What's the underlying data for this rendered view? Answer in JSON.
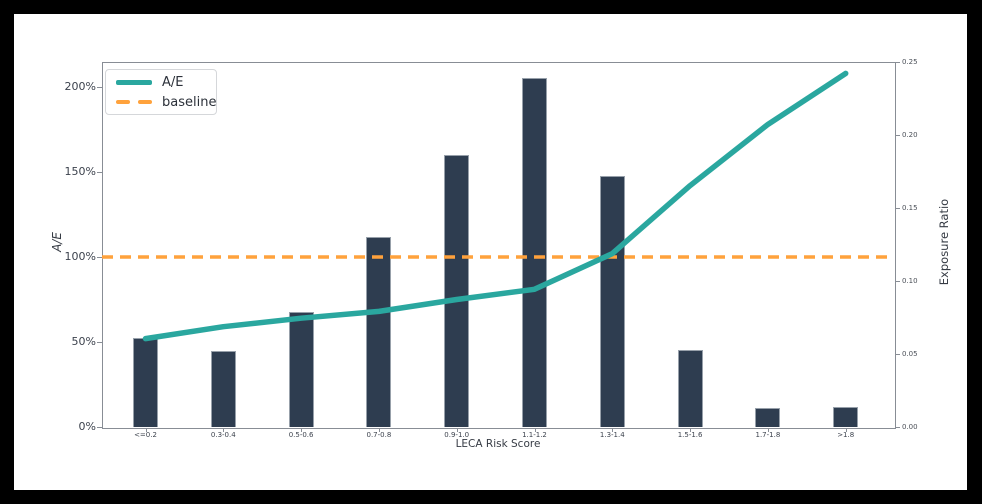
{
  "figure": {
    "background": "#ffffff",
    "frame_color": "#000000"
  },
  "colors": {
    "bar": "#2e3d50",
    "bar_edge": "#97a0aa",
    "ae_line": "#2aa79f",
    "baseline": "#ffa23c",
    "grid": "#e1e3e5",
    "spine": "#888d95",
    "tick_text": "#3c424d"
  },
  "chart_data": {
    "type": "combo",
    "title": "",
    "xlabel": "LECA Risk Score",
    "categories": [
      "<=0.2",
      "0.3-0.4",
      "0.5-0.6",
      "0.7-0.8",
      "0.9-1.0",
      "1.1-1.2",
      "1.3-1.4",
      "1.5-1.6",
      "1.7-1.8",
      ">1.8"
    ],
    "series": [
      {
        "name": "Exposure Ratio",
        "type": "bar",
        "axis": "right",
        "color": "#2e3d50",
        "values": [
          0.061,
          0.052,
          0.079,
          0.13,
          0.186,
          0.239,
          0.172,
          0.053,
          0.013,
          0.014
        ]
      },
      {
        "name": "A/E",
        "type": "line",
        "axis": "left",
        "color": "#2aa79f",
        "values_percent": [
          52,
          59,
          64,
          68,
          75,
          81,
          102,
          142,
          178,
          208
        ]
      },
      {
        "name": "baseline",
        "type": "hline-dashed",
        "axis": "left",
        "color": "#ffa23c",
        "value_percent": 100
      }
    ],
    "left_axis": {
      "label": "A/E",
      "tick_labels": [
        "0%",
        "50%",
        "100%",
        "150%",
        "200%"
      ],
      "tick_values": [
        0,
        50,
        100,
        150,
        200
      ],
      "top_percent": 214.7
    },
    "right_axis": {
      "label": "Exposure Ratio",
      "tick_labels": [
        "0.00",
        "0.05",
        "0.10",
        "0.15",
        "0.20",
        "0.25"
      ],
      "tick_values": [
        0,
        0.05,
        0.1,
        0.15,
        0.2,
        0.25
      ],
      "range": [
        0,
        0.25
      ]
    },
    "legend": {
      "position": "upper-left",
      "entries": [
        {
          "label": "A/E",
          "swatch": "teal-solid-line"
        },
        {
          "label": "baseline",
          "swatch": "orange-dashed-line"
        }
      ]
    },
    "grid": {
      "horizontal": true,
      "source": "right-axis-ticks"
    }
  }
}
